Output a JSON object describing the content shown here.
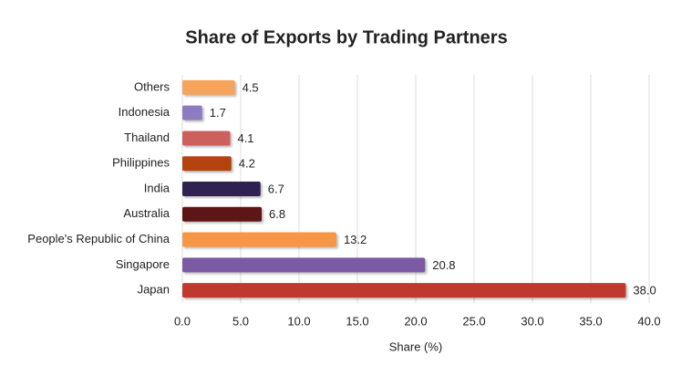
{
  "chart_data": {
    "type": "hbar",
    "title": "Share of Exports by Trading Partners",
    "x_label": "Share (%)",
    "categories": [
      "Others",
      "Indonesia",
      "Thailand",
      "Philippines",
      "India",
      "Australia",
      "People's Republic of China",
      "Singapore",
      "Japan"
    ],
    "values": [
      4.5,
      1.7,
      4.1,
      4.2,
      6.7,
      6.8,
      13.2,
      20.8,
      38
    ],
    "value_labels": [
      "4.5",
      "1.7",
      "4.1",
      "4.2",
      "6.7",
      "6.8",
      "13.2",
      "20.8",
      "38.0"
    ],
    "colors": [
      "#f6a45c",
      "#8e7cc3",
      "#cd5f5c",
      "#b5430f",
      "#2f2150",
      "#5e1515",
      "#f79646",
      "#7b5aa6",
      "#c0392f"
    ],
    "xlim": [
      0,
      40
    ],
    "xticks": [
      {
        "value": 0,
        "label": "0.0"
      },
      {
        "value": 5,
        "label": "5.0"
      },
      {
        "value": 10,
        "label": "10.0"
      },
      {
        "value": 15,
        "label": "15.0"
      },
      {
        "value": 20,
        "label": "20.0"
      },
      {
        "value": 25,
        "label": "25.0"
      },
      {
        "value": 30,
        "label": "30.0"
      },
      {
        "value": 35,
        "label": "35.0"
      },
      {
        "value": 40,
        "label": "40.0"
      }
    ],
    "grid": true
  }
}
